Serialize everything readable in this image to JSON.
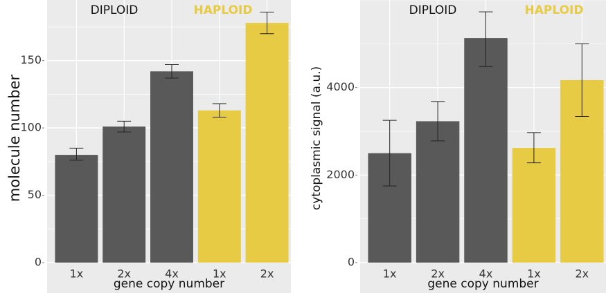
{
  "colors": {
    "panel_bg": "#ebebeb",
    "grid": "#ffffff",
    "diploid_bar": "#595959",
    "haploid_bar": "#e8cb45",
    "diploid_text": "#111111",
    "haploid_text": "#e8cb45",
    "error_bar": "#222222"
  },
  "chart_data": [
    {
      "type": "bar",
      "title": "",
      "xlabel": "gene copy number",
      "ylabel": "molecule number",
      "categories": [
        "1x",
        "2x",
        "4x",
        "1x",
        "2x"
      ],
      "groups": [
        "diploid",
        "diploid",
        "diploid",
        "haploid",
        "haploid"
      ],
      "group_labels": {
        "diploid": "DIPLOID",
        "haploid": "HAPLOID"
      },
      "values": [
        80,
        101,
        142,
        113,
        178
      ],
      "error": [
        [
          76,
          85
        ],
        [
          97,
          105
        ],
        [
          137,
          147
        ],
        [
          108,
          118
        ],
        [
          170,
          186
        ]
      ],
      "ylim": [
        0,
        195
      ],
      "yticks": [
        0,
        50,
        100,
        150
      ],
      "grid": true
    },
    {
      "type": "bar",
      "title": "",
      "xlabel": "gene copy number",
      "ylabel": "cytoplasmic signal (a.u.)",
      "categories": [
        "1x",
        "2x",
        "4x",
        "1x",
        "2x"
      ],
      "groups": [
        "diploid",
        "diploid",
        "diploid",
        "haploid",
        "haploid"
      ],
      "group_labels": {
        "diploid": "DIPLOID",
        "haploid": "HAPLOID"
      },
      "values": [
        2500,
        3230,
        5130,
        2620,
        4170
      ],
      "error": [
        [
          1750,
          3250
        ],
        [
          2780,
          3680
        ],
        [
          4480,
          5730
        ],
        [
          2280,
          2970
        ],
        [
          3340,
          5000
        ]
      ],
      "ylim": [
        0,
        6000
      ],
      "yticks": [
        0,
        2000,
        4000
      ],
      "grid": true
    }
  ]
}
